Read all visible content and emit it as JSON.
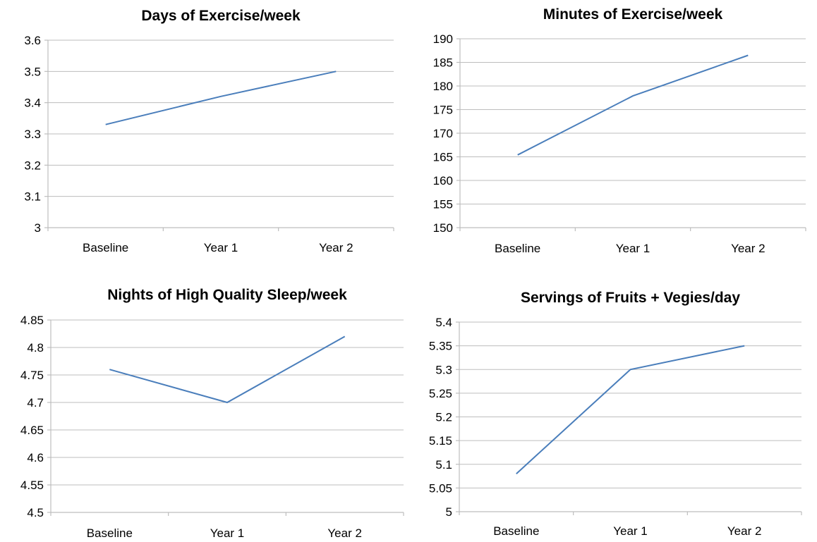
{
  "chart_data": [
    {
      "type": "line",
      "title": "Days of Exercise/week",
      "categories": [
        "Baseline",
        "Year 1",
        "Year 2"
      ],
      "values": [
        3.33,
        3.42,
        3.5
      ],
      "ylim": [
        3,
        3.6
      ],
      "yticks": [
        "3",
        "3.1",
        "3.2",
        "3.3",
        "3.4",
        "3.5",
        "3.6"
      ],
      "grid": true,
      "color": "#4a7ebb"
    },
    {
      "type": "line",
      "title": "Minutes of Exercise/week",
      "categories": [
        "Baseline",
        "Year 1",
        "Year 2"
      ],
      "values": [
        165.4,
        177.9,
        186.5
      ],
      "ylim": [
        150,
        190
      ],
      "yticks": [
        "150",
        "155",
        "160",
        "165",
        "170",
        "175",
        "180",
        "185",
        "190"
      ],
      "grid": true,
      "color": "#4a7ebb"
    },
    {
      "type": "line",
      "title": "Nights of High Quality Sleep/week",
      "categories": [
        "Baseline",
        "Year 1",
        "Year 2"
      ],
      "values": [
        4.76,
        4.7,
        4.82
      ],
      "ylim": [
        4.5,
        4.85
      ],
      "yticks": [
        "4.5",
        "4.55",
        "4.6",
        "4.65",
        "4.7",
        "4.75",
        "4.8",
        "4.85"
      ],
      "grid": true,
      "color": "#4a7ebb"
    },
    {
      "type": "line",
      "title": "Servings of Fruits + Vegies/day",
      "categories": [
        "Baseline",
        "Year 1",
        "Year 2"
      ],
      "values": [
        5.08,
        5.3,
        5.35
      ],
      "ylim": [
        5,
        5.4
      ],
      "yticks": [
        "5",
        "5.05",
        "5.1",
        "5.15",
        "5.2",
        "5.25",
        "5.3",
        "5.35",
        "5.4"
      ],
      "grid": true,
      "color": "#4a7ebb"
    }
  ]
}
